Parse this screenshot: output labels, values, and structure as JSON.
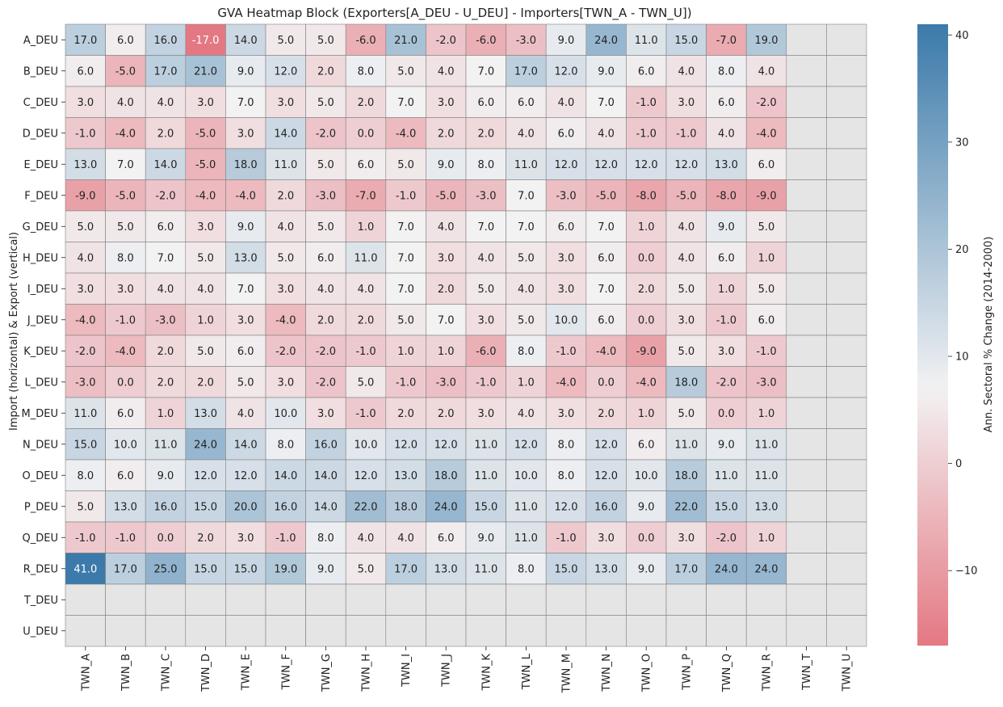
{
  "chart_data": {
    "type": "heatmap",
    "title": "GVA Heatmap Block (Exporters[A_DEU - U_DEU] - Importers[TWN_A - TWN_U])",
    "xlabel": "",
    "ylabel": "Import (horizontal) & Export (vertical)",
    "colorbar_label": "Ann. Sectoral % Change (2014-2000)",
    "colorbar_ticks": [
      -10,
      0,
      10,
      20,
      30,
      40
    ],
    "value_range": [
      -17,
      41
    ],
    "colorbar_range": [
      -17,
      41
    ],
    "center_value": 7,
    "color_low": "#e47882",
    "color_mid": "#f2f2f3",
    "color_high": "#3b7aaa",
    "missing_color": "#e5e5e5",
    "grid_color": "#808080",
    "grid": true,
    "x_categories": [
      "TWN_A",
      "TWN_B",
      "TWN_C",
      "TWN_D",
      "TWN_E",
      "TWN_F",
      "TWN_G",
      "TWN_H",
      "TWN_I",
      "TWN_J",
      "TWN_K",
      "TWN_L",
      "TWN_M",
      "TWN_N",
      "TWN_O",
      "TWN_P",
      "TWN_Q",
      "TWN_R",
      "TWN_T",
      "TWN_U"
    ],
    "y_categories": [
      "A_DEU",
      "B_DEU",
      "C_DEU",
      "D_DEU",
      "E_DEU",
      "F_DEU",
      "G_DEU",
      "H_DEU",
      "I_DEU",
      "J_DEU",
      "K_DEU",
      "L_DEU",
      "M_DEU",
      "N_DEU",
      "O_DEU",
      "P_DEU",
      "Q_DEU",
      "R_DEU",
      "T_DEU",
      "U_DEU"
    ],
    "values": [
      [
        17,
        6,
        16,
        -17,
        14,
        5,
        5,
        -6,
        21,
        -2,
        -6,
        -3,
        9,
        24,
        11,
        15,
        -7,
        19,
        null,
        null
      ],
      [
        6,
        -5,
        17,
        21,
        9,
        12,
        2,
        8,
        5,
        4,
        7,
        17,
        12,
        9,
        6,
        4,
        8,
        4,
        null,
        null
      ],
      [
        3,
        4,
        4,
        3,
        7,
        3,
        5,
        2,
        7,
        3,
        6,
        6,
        4,
        7,
        -1,
        3,
        6,
        -2,
        null,
        null
      ],
      [
        -1,
        -4,
        2,
        -5,
        3,
        14,
        -2,
        0,
        -4,
        2,
        2,
        4,
        6,
        4,
        -1,
        -1,
        4,
        -4,
        null,
        null
      ],
      [
        13,
        7,
        14,
        -5,
        18,
        11,
        5,
        6,
        5,
        9,
        8,
        11,
        12,
        12,
        12,
        12,
        13,
        6,
        null,
        null
      ],
      [
        -9,
        -5,
        -2,
        -4,
        -4,
        2,
        -3,
        -7,
        -1,
        -5,
        -3,
        7,
        -3,
        -5,
        -8,
        -5,
        -8,
        -9,
        null,
        null
      ],
      [
        5,
        5,
        6,
        3,
        9,
        4,
        5,
        1,
        7,
        4,
        7,
        7,
        6,
        7,
        1,
        4,
        9,
        5,
        null,
        null
      ],
      [
        4,
        8,
        7,
        5,
        13,
        5,
        6,
        11,
        7,
        3,
        4,
        5,
        3,
        6,
        0,
        4,
        6,
        1,
        null,
        null
      ],
      [
        3,
        3,
        4,
        4,
        7,
        3,
        4,
        4,
        7,
        2,
        5,
        4,
        3,
        7,
        2,
        5,
        1,
        5,
        null,
        null
      ],
      [
        -4,
        -1,
        -3,
        1,
        3,
        -4,
        2,
        2,
        5,
        7,
        3,
        5,
        10,
        6,
        0,
        3,
        -1,
        6,
        null,
        null
      ],
      [
        -2,
        -4,
        2,
        5,
        6,
        -2,
        -2,
        -1,
        1,
        1,
        -6,
        8,
        -1,
        -4,
        -9,
        5,
        3,
        -1,
        null,
        null
      ],
      [
        -3,
        0,
        2,
        2,
        5,
        3,
        -2,
        5,
        -1,
        -3,
        -1,
        1,
        -4,
        0,
        -4,
        18,
        -2,
        -3,
        null,
        null
      ],
      [
        11,
        6,
        1,
        13,
        4,
        10,
        3,
        -1,
        2,
        2,
        3,
        4,
        3,
        2,
        1,
        5,
        0,
        1,
        null,
        null
      ],
      [
        15,
        10,
        11,
        24,
        14,
        8,
        16,
        10,
        12,
        12,
        11,
        12,
        8,
        12,
        6,
        11,
        9,
        11,
        null,
        null
      ],
      [
        8,
        6,
        9,
        12,
        12,
        14,
        14,
        12,
        13,
        18,
        11,
        10,
        8,
        12,
        10,
        18,
        11,
        11,
        null,
        null
      ],
      [
        5,
        13,
        16,
        15,
        20,
        16,
        14,
        22,
        18,
        24,
        15,
        11,
        12,
        16,
        9,
        22,
        15,
        13,
        null,
        null
      ],
      [
        -1,
        -1,
        0,
        2,
        3,
        -1,
        8,
        4,
        4,
        6,
        9,
        11,
        -1,
        3,
        0,
        3,
        -2,
        1,
        null,
        null
      ],
      [
        41,
        17,
        25,
        15,
        15,
        19,
        9,
        5,
        17,
        13,
        11,
        8,
        15,
        13,
        9,
        17,
        24,
        24,
        null,
        null
      ],
      [
        null,
        null,
        null,
        null,
        null,
        null,
        null,
        null,
        null,
        null,
        null,
        null,
        null,
        null,
        null,
        null,
        null,
        null,
        null,
        null
      ],
      [
        null,
        null,
        null,
        null,
        null,
        null,
        null,
        null,
        null,
        null,
        null,
        null,
        null,
        null,
        null,
        null,
        null,
        null,
        null,
        null
      ]
    ]
  }
}
